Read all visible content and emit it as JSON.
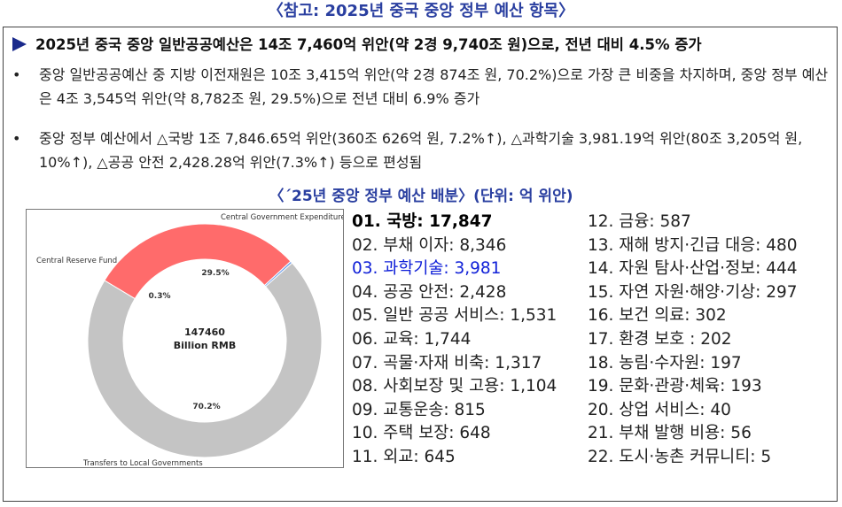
{
  "title": "〈참고: 2025년 중국 중앙 정부 예산 항목〉",
  "lead": "2025년 중국 중앙 일반공공예산은 14조 7,460억 위안(약 2경 9,740조 원)으로, 전년 대비 4.5% 증가",
  "bullets": [
    {
      "text": "중앙 일반공공예산 중 지방 이전재원은 10조 3,415억 위안(약 2경 874조 원, 70.2%)으로 가장 큰 비중을 차지하며, 중앙 정부 예산은 4조 3,545억 위안(약 8,782조 원, 29.5%)으로 전년 대비 6.9% 증가"
    },
    {
      "text": "중앙 정부 예산에서 △국방 1조 7,846.65억 위안(360조 626억 원, 7.2%↑), △과학기술 3,981.19억 위안(80조 3,205억 원, 10%↑), △공공 안전 2,428.28억 위안(7.3%↑) 등으로 편성됨"
    }
  ],
  "subtitle": "〈´25년 중앙 정부 예산 배분〉(단위: 억 위안)",
  "chart_data": {
    "type": "pie",
    "labels": [
      "Central Government Expenditure",
      "Central Reserve Fund",
      "Transfers to Local Governments"
    ],
    "values": [
      29.5,
      0.3,
      70.2
    ],
    "pct_labels": [
      "29.5%",
      "0.3%",
      "70.2%"
    ],
    "center_value": "147460",
    "center_unit": "Billion RMB",
    "colors": [
      "#ff6b6b",
      "#6f9ee8",
      "#c4c4c4"
    ]
  },
  "items_left": [
    "01. 국방: 17,847",
    "02. 부채 이자: 8,346",
    "03. 과학기술: 3,981",
    "04. 공공 안전: 2,428",
    "05. 일반 공공 서비스: 1,531",
    "06. 교육: 1,744",
    "07. 곡물·자재 비축: 1,317",
    "08. 사회보장 및 고용: 1,104",
    "09. 교통운송: 815",
    "10. 주택 보장: 648",
    "11. 외교: 645"
  ],
  "items_right": [
    "12. 금융: 587",
    "13. 재해 방지·긴급 대응: 480",
    "14. 자원 탐사·산업·정보: 444",
    "15. 자연 자원·해양·기상: 297",
    "16. 보건 의료: 302",
    "17. 환경 보호 : 202",
    "18. 농림·수자원: 197",
    "19. 문화·관광·체육: 193",
    "20. 상업 서비스: 40",
    "21. 부채 발행 비용: 56",
    "22. 도시·농촌 커뮤니티: 5"
  ]
}
